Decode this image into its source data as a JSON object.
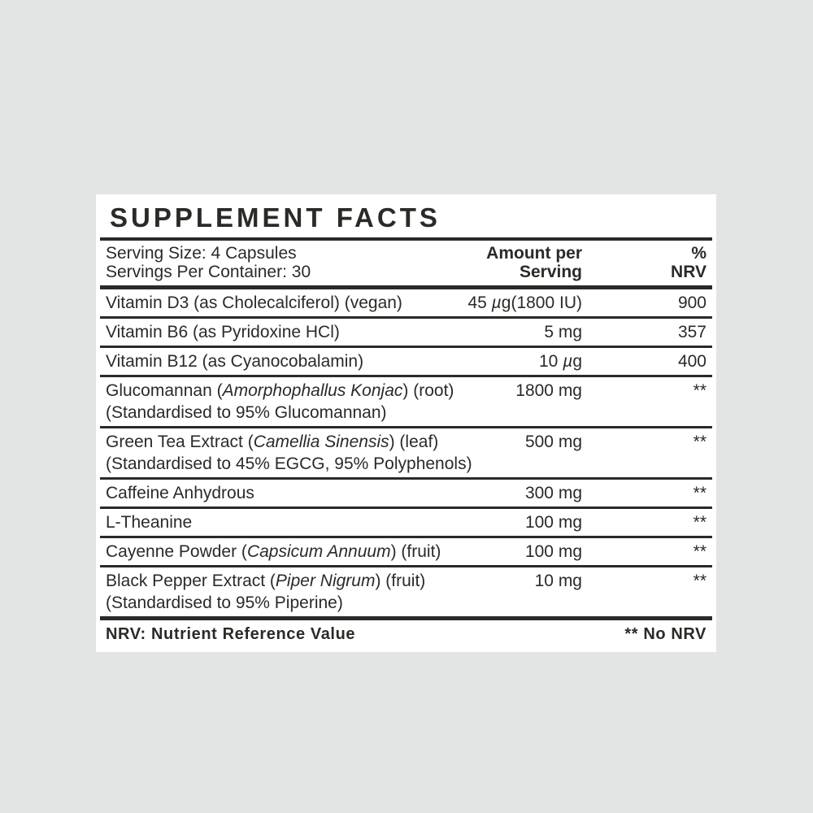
{
  "colors": {
    "background": "#e3e4e4",
    "panel": "#ffffff",
    "ink": "#2b2a27"
  },
  "label": {
    "title": "SUPPLEMENT FACTS",
    "serving_size": "Serving Size: 4 Capsules",
    "servings_per_container": "Servings Per Container: 30",
    "amount_header_line1": "Amount per",
    "amount_header_line2": "Serving",
    "nrv_header_line1": "%",
    "nrv_header_line2": "NRV",
    "footer_left": "NRV: Nutrient Reference Value",
    "footer_right": "** No NRV"
  },
  "table": {
    "rows": [
      {
        "name": [
          {
            "text": "Vitamin D3 (as Cholecalciferol) (vegan)"
          }
        ],
        "amount": [
          {
            "text": "45 "
          },
          {
            "text": "µ",
            "italic": true
          },
          {
            "text": "g(1800 IU)"
          }
        ],
        "nrv": "900"
      },
      {
        "name": [
          {
            "text": "Vitamin B6 (as Pyridoxine HCl)"
          }
        ],
        "amount": [
          {
            "text": "5 mg"
          }
        ],
        "nrv": "357"
      },
      {
        "name": [
          {
            "text": "Vitamin B12 (as Cyanocobalamin)"
          }
        ],
        "amount": [
          {
            "text": "10 "
          },
          {
            "text": "µ",
            "italic": true
          },
          {
            "text": "g"
          }
        ],
        "nrv": "400"
      },
      {
        "name": [
          {
            "text": "Glucomannan ("
          },
          {
            "text": "Amorphophallus Konjac",
            "italic": true
          },
          {
            "text": ") (root)"
          }
        ],
        "name2": [
          {
            "text": "(Standardised to 95% Glucomannan)"
          }
        ],
        "amount": [
          {
            "text": "1800 mg"
          }
        ],
        "nrv": "**"
      },
      {
        "name": [
          {
            "text": "Green Tea Extract ("
          },
          {
            "text": "Camellia Sinensis",
            "italic": true
          },
          {
            "text": ") (leaf)"
          }
        ],
        "name2": [
          {
            "text": "(Standardised to 45% EGCG, 95% Polyphenols)"
          }
        ],
        "amount": [
          {
            "text": "500 mg"
          }
        ],
        "nrv": "**"
      },
      {
        "name": [
          {
            "text": "Caffeine Anhydrous"
          }
        ],
        "amount": [
          {
            "text": "300 mg"
          }
        ],
        "nrv": "**"
      },
      {
        "name": [
          {
            "text": "L-Theanine"
          }
        ],
        "amount": [
          {
            "text": "100 mg"
          }
        ],
        "nrv": "**"
      },
      {
        "name": [
          {
            "text": "Cayenne Powder ("
          },
          {
            "text": "Capsicum Annuum",
            "italic": true
          },
          {
            "text": ") (fruit)"
          }
        ],
        "amount": [
          {
            "text": "100 mg"
          }
        ],
        "nrv": "**"
      },
      {
        "name": [
          {
            "text": "Black Pepper Extract ("
          },
          {
            "text": "Piper Nigrum",
            "italic": true
          },
          {
            "text": ") (fruit)"
          }
        ],
        "name2": [
          {
            "text": "(Standardised to 95% Piperine)"
          }
        ],
        "amount": [
          {
            "text": "10 mg"
          }
        ],
        "nrv": "**"
      }
    ]
  }
}
